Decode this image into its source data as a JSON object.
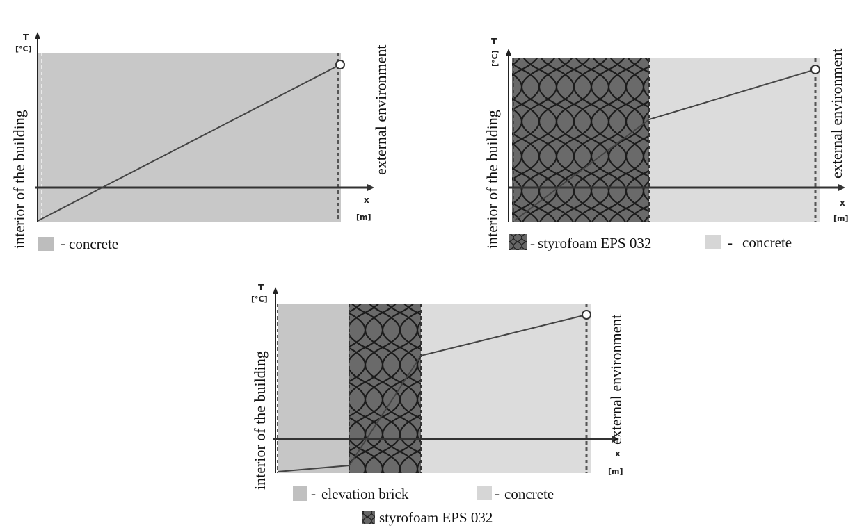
{
  "axis": {
    "y_symbol": "T",
    "y_unit": "[°C]",
    "x_symbol": "x",
    "x_unit": "[m]"
  },
  "side_labels": {
    "interior": "interior of the building",
    "exterior": "external environment"
  },
  "legend_marker": "-",
  "materials": {
    "concrete": "concrete",
    "styrofoam": "styrofoam EPS 032",
    "brick": "elevation brick"
  },
  "colors": {
    "concrete_panel1": "#c8c8c8",
    "concrete_light": "#dcdcdc",
    "brick": "#c6c6c6",
    "styrofoam": "#555555",
    "line": "#444444"
  },
  "icons": {
    "boundary_point": "open-circle-marker",
    "styrofoam_swatch": "hatched-swatch"
  }
}
